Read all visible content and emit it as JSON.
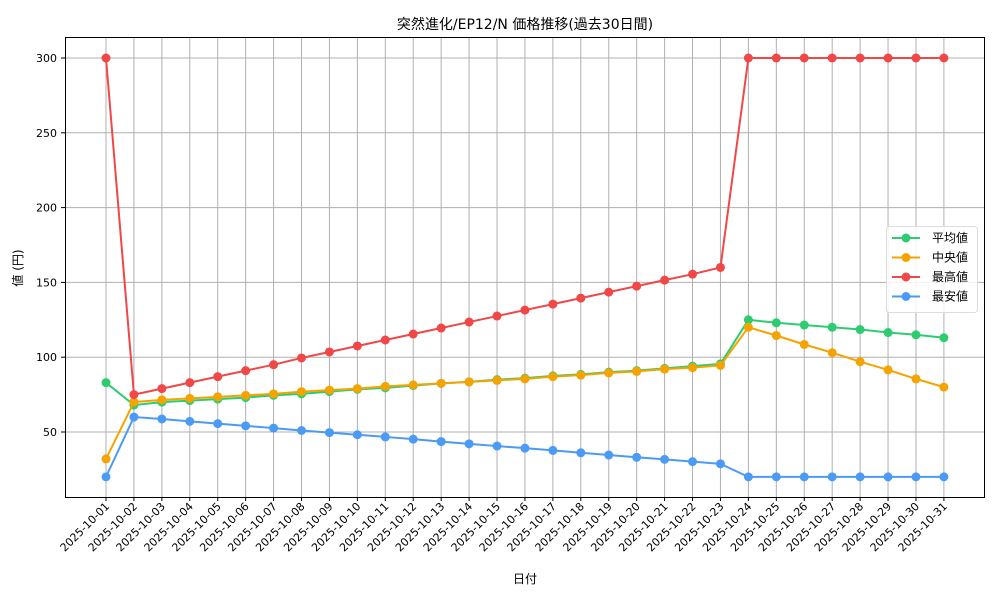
{
  "chart_data": {
    "type": "line",
    "title": "突然進化/EP12/N 価格推移(過去30日間)",
    "xlabel": "日付",
    "ylabel": "値 (円)",
    "ylim": [
      8,
      314
    ],
    "yticks": [
      50,
      100,
      150,
      200,
      250,
      300
    ],
    "grid": true,
    "legend_position": "center right",
    "categories": [
      "2025-10-01",
      "2025-10-02",
      "2025-10-03",
      "2025-10-04",
      "2025-10-05",
      "2025-10-06",
      "2025-10-07",
      "2025-10-08",
      "2025-10-09",
      "2025-10-10",
      "2025-10-11",
      "2025-10-12",
      "2025-10-13",
      "2025-10-14",
      "2025-10-15",
      "2025-10-16",
      "2025-10-17",
      "2025-10-18",
      "2025-10-19",
      "2025-10-20",
      "2025-10-21",
      "2025-10-22",
      "2025-10-23",
      "2025-10-24",
      "2025-10-25",
      "2025-10-26",
      "2025-10-27",
      "2025-10-28",
      "2025-10-29",
      "2025-10-30",
      "2025-10-31"
    ],
    "series": [
      {
        "name": "平均値",
        "color": "#2ecc71",
        "values": [
          83,
          68,
          70,
          71,
          72,
          73,
          74.5,
          75.5,
          77,
          78.5,
          79.5,
          81,
          82.5,
          83.5,
          85,
          86,
          87.5,
          88.5,
          90,
          91,
          92.5,
          94,
          95.5,
          125,
          123,
          121.5,
          120,
          118.5,
          116.5,
          115,
          113
        ]
      },
      {
        "name": "中央値",
        "color": "#f5a300",
        "values": [
          32,
          70,
          71.5,
          72.5,
          73.5,
          74.5,
          75.5,
          77,
          78,
          79,
          80.5,
          81.5,
          82.5,
          83.5,
          84.5,
          85.5,
          87,
          88,
          89.5,
          90.5,
          92,
          93,
          94.5,
          120,
          114.5,
          108.5,
          103,
          97,
          91.5,
          85.5,
          80
        ]
      },
      {
        "name": "最高値",
        "color": "#f04848",
        "values": [
          300,
          75,
          79,
          83,
          87,
          91,
          95,
          99.5,
          103.5,
          107.5,
          111.5,
          115.5,
          119.5,
          123.5,
          127.5,
          131.5,
          135.5,
          139.5,
          143.5,
          147.5,
          151.5,
          155.5,
          160,
          300,
          300,
          300,
          300,
          300,
          300,
          300,
          300
        ]
      },
      {
        "name": "最安値",
        "color": "#4b9bf5",
        "values": [
          20,
          60,
          58.7,
          57.1,
          55.6,
          54.1,
          52.6,
          51,
          49.6,
          48.2,
          46.7,
          45.2,
          43.6,
          42.1,
          40.6,
          39.2,
          37.7,
          36.1,
          34.6,
          33.1,
          31.7,
          30.2,
          28.7,
          20,
          20,
          20,
          20,
          20,
          20,
          20,
          20
        ]
      }
    ]
  }
}
